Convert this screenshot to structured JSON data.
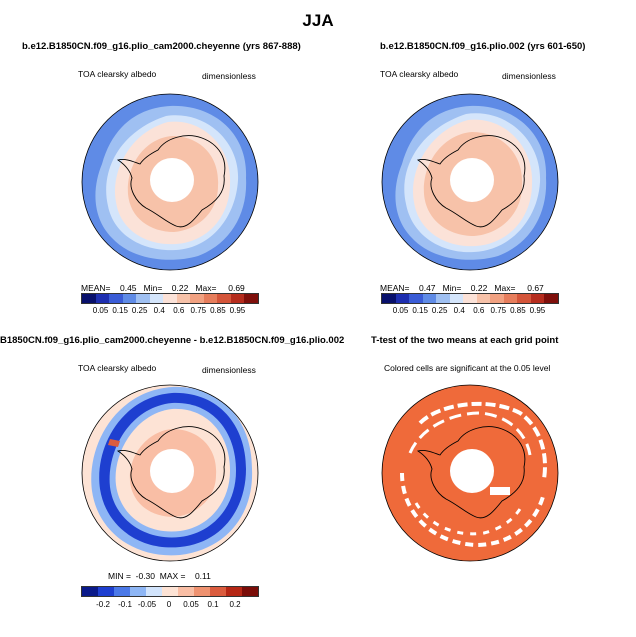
{
  "season": "JJA",
  "colors": {
    "abs_scale": [
      "#08106b",
      "#1e2fb0",
      "#3a5cd6",
      "#5f8be6",
      "#9fc0f2",
      "#d4e5fb",
      "#fbe2d8",
      "#f7c2a9",
      "#f1a181",
      "#e67d5c",
      "#d4553a",
      "#b52c1d",
      "#7f0f0b"
    ],
    "diff_scale": [
      "#0a1a8a",
      "#1e3fd0",
      "#4b79e8",
      "#8eb6f5",
      "#d2e4fc",
      "#fde3d5",
      "#f9bea5",
      "#ef9270",
      "#db5c3e",
      "#b52715",
      "#7a0d08"
    ],
    "ttest_fill": "#ef6a3a",
    "land": "#ffffff",
    "coast": "#000000"
  },
  "panels": [
    {
      "title": "b.e12.B1850CN.f09_g16.plio_cam2000.cheyenne (yrs 867-888)",
      "left_label": "TOA clearsky albedo",
      "right_label": "dimensionless",
      "stats": {
        "mean_label": "MEAN=",
        "mean": "0.45",
        "min_label": "Min=",
        "min": "0.22",
        "max_label": "Max=",
        "max": "0.69"
      },
      "ticks": [
        "0.05",
        "0.15",
        "0.25",
        "0.4",
        "0.6",
        "0.75",
        "0.85",
        "0.95"
      ]
    },
    {
      "title": "b.e12.B1850CN.f09_g16.plio.002 (yrs 601-650)",
      "left_label": "TOA clearsky albedo",
      "right_label": "dimensionless",
      "stats": {
        "mean_label": "MEAN=",
        "mean": "0.47",
        "min_label": "Min=",
        "min": "0.22",
        "max_label": "Max=",
        "max": "0.67"
      },
      "ticks": [
        "0.05",
        "0.15",
        "0.25",
        "0.4",
        "0.6",
        "0.75",
        "0.85",
        "0.95"
      ]
    },
    {
      "title": "B1850CN.f09_g16.plio_cam2000.cheyenne - b.e12.B1850CN.f09_g16.plio.002",
      "left_label": "TOA clearsky albedo",
      "right_label": "dimensionless",
      "stats": {
        "min_label": "MIN =",
        "min": "-0.30",
        "max_label": "MAX =",
        "max": "0.11"
      },
      "ticks": [
        "-0.2",
        "-0.1",
        "-0.05",
        "0",
        "0.05",
        "0.1",
        "0.2"
      ]
    },
    {
      "title": "T-test of the two means at each grid point",
      "subtitle": "Colored cells are significant at the 0.05 level"
    }
  ]
}
